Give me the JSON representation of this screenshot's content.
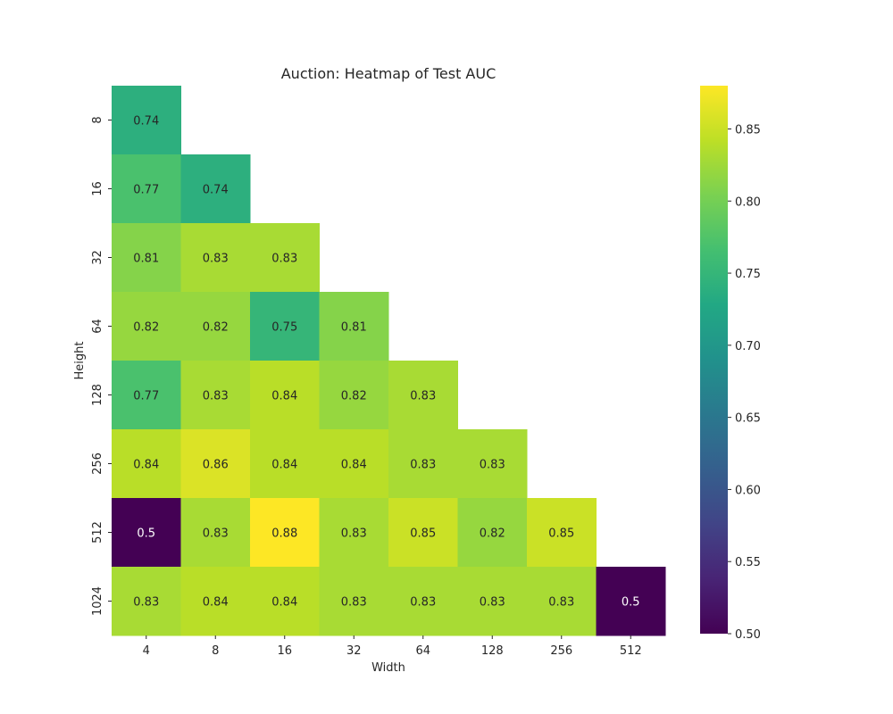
{
  "chart_data": {
    "type": "heatmap",
    "title": "Auction: Heatmap of Test AUC",
    "xlabel": "Width",
    "ylabel": "Height",
    "x_categories": [
      "4",
      "8",
      "16",
      "32",
      "64",
      "128",
      "256",
      "512"
    ],
    "y_categories": [
      "8",
      "16",
      "32",
      "64",
      "128",
      "256",
      "512",
      "1024"
    ],
    "values": [
      [
        0.74,
        null,
        null,
        null,
        null,
        null,
        null,
        null
      ],
      [
        0.77,
        0.74,
        null,
        null,
        null,
        null,
        null,
        null
      ],
      [
        0.81,
        0.83,
        0.83,
        null,
        null,
        null,
        null,
        null
      ],
      [
        0.82,
        0.82,
        0.75,
        0.81,
        null,
        null,
        null,
        null
      ],
      [
        0.77,
        0.83,
        0.84,
        0.82,
        0.83,
        null,
        null,
        null
      ],
      [
        0.84,
        0.86,
        0.84,
        0.84,
        0.83,
        0.83,
        null,
        null
      ],
      [
        0.5,
        0.83,
        0.88,
        0.83,
        0.85,
        0.82,
        0.85,
        null
      ],
      [
        0.83,
        0.84,
        0.84,
        0.83,
        0.83,
        0.83,
        0.83,
        0.5
      ]
    ],
    "colormap": "viridis",
    "vmin": 0.5,
    "vmax": 0.88,
    "colorbar_ticks": [
      "0.50",
      "0.55",
      "0.60",
      "0.65",
      "0.70",
      "0.75",
      "0.80",
      "0.85"
    ],
    "annotations": true
  }
}
